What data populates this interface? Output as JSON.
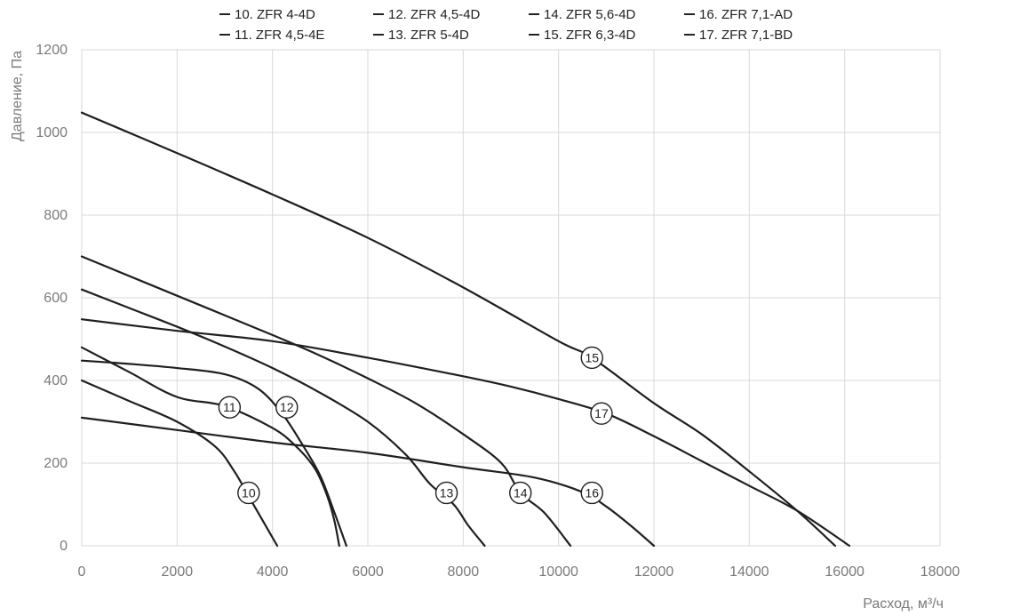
{
  "chart_data": {
    "type": "line",
    "title": "",
    "xlabel": "Расход, м³/ч",
    "ylabel": "Давление, Па",
    "xlim": [
      0,
      18000
    ],
    "ylim": [
      0,
      1200
    ],
    "xticks": [
      "0",
      "2000",
      "4000",
      "6000",
      "8000",
      "10000",
      "12000",
      "14000",
      "16000",
      "18000"
    ],
    "yticks": [
      "0",
      "200",
      "400",
      "600",
      "800",
      "1000",
      "1200"
    ],
    "grid": true,
    "legend_position": "top",
    "series": [
      {
        "name": "10. ZFR 4-4D",
        "label": "10",
        "x": [
          0,
          1000,
          2000,
          2800,
          3200,
          3500,
          3800,
          4100
        ],
        "y": [
          400,
          350,
          300,
          240,
          180,
          120,
          60,
          0
        ],
        "label_point": [
          3500,
          128
        ]
      },
      {
        "name": "11. ZFR 4,5-4E",
        "label": "11",
        "x": [
          0,
          1000,
          2000,
          3000,
          4000,
          4500,
          4900,
          5150,
          5300,
          5400
        ],
        "y": [
          480,
          420,
          360,
          338,
          285,
          240,
          185,
          120,
          60,
          0
        ],
        "label_point": [
          3100,
          335
        ]
      },
      {
        "name": "12. ZFR 4,5-4D",
        "label": "12",
        "x": [
          0,
          1000,
          2000,
          3000,
          3700,
          4200,
          4600,
          5000,
          5300,
          5550
        ],
        "y": [
          448,
          440,
          430,
          415,
          380,
          320,
          250,
          170,
          80,
          0
        ],
        "label_point": [
          4300,
          335
        ]
      },
      {
        "name": "13. ZFR 5-4D",
        "label": "13",
        "x": [
          0,
          1000,
          2000,
          3000,
          4000,
          5000,
          6000,
          6800,
          7300,
          7800,
          8100,
          8450
        ],
        "y": [
          620,
          575,
          530,
          482,
          430,
          370,
          300,
          220,
          150,
          100,
          50,
          0
        ],
        "label_point": [
          7650,
          128
        ]
      },
      {
        "name": "14. ZFR 5,6-4D",
        "label": "14",
        "x": [
          0,
          2000,
          4000,
          5000,
          6000,
          7000,
          8000,
          8800,
          9200,
          9700,
          10250
        ],
        "y": [
          700,
          605,
          510,
          460,
          405,
          345,
          270,
          200,
          128,
          80,
          0
        ],
        "label_point": [
          9200,
          128
        ]
      },
      {
        "name": "15. ZFR 6,3-4D",
        "label": "15",
        "x": [
          0,
          2000,
          4000,
          6000,
          8000,
          10000,
          10700,
          12000,
          13000,
          14000,
          15000,
          15800
        ],
        "y": [
          1048,
          950,
          850,
          745,
          625,
          495,
          455,
          345,
          270,
          180,
          85,
          0
        ],
        "label_point": [
          10700,
          455
        ]
      },
      {
        "name": "16. ZFR 7,1-AD",
        "label": "16",
        "x": [
          0,
          2000,
          4000,
          6000,
          8000,
          9500,
          10500,
          11000,
          11500,
          12000
        ],
        "y": [
          310,
          280,
          250,
          225,
          190,
          165,
          130,
          95,
          50,
          0
        ],
        "label_point": [
          10700,
          128
        ]
      },
      {
        "name": "17. ZFR 7,1-BD",
        "label": "17",
        "x": [
          0,
          2000,
          4000,
          6000,
          8000,
          9000,
          10000,
          11000,
          12000,
          13000,
          14000,
          15000,
          16100
        ],
        "y": [
          548,
          520,
          495,
          455,
          410,
          385,
          355,
          320,
          265,
          205,
          145,
          85,
          0
        ],
        "label_point": [
          10900,
          320
        ]
      }
    ]
  }
}
